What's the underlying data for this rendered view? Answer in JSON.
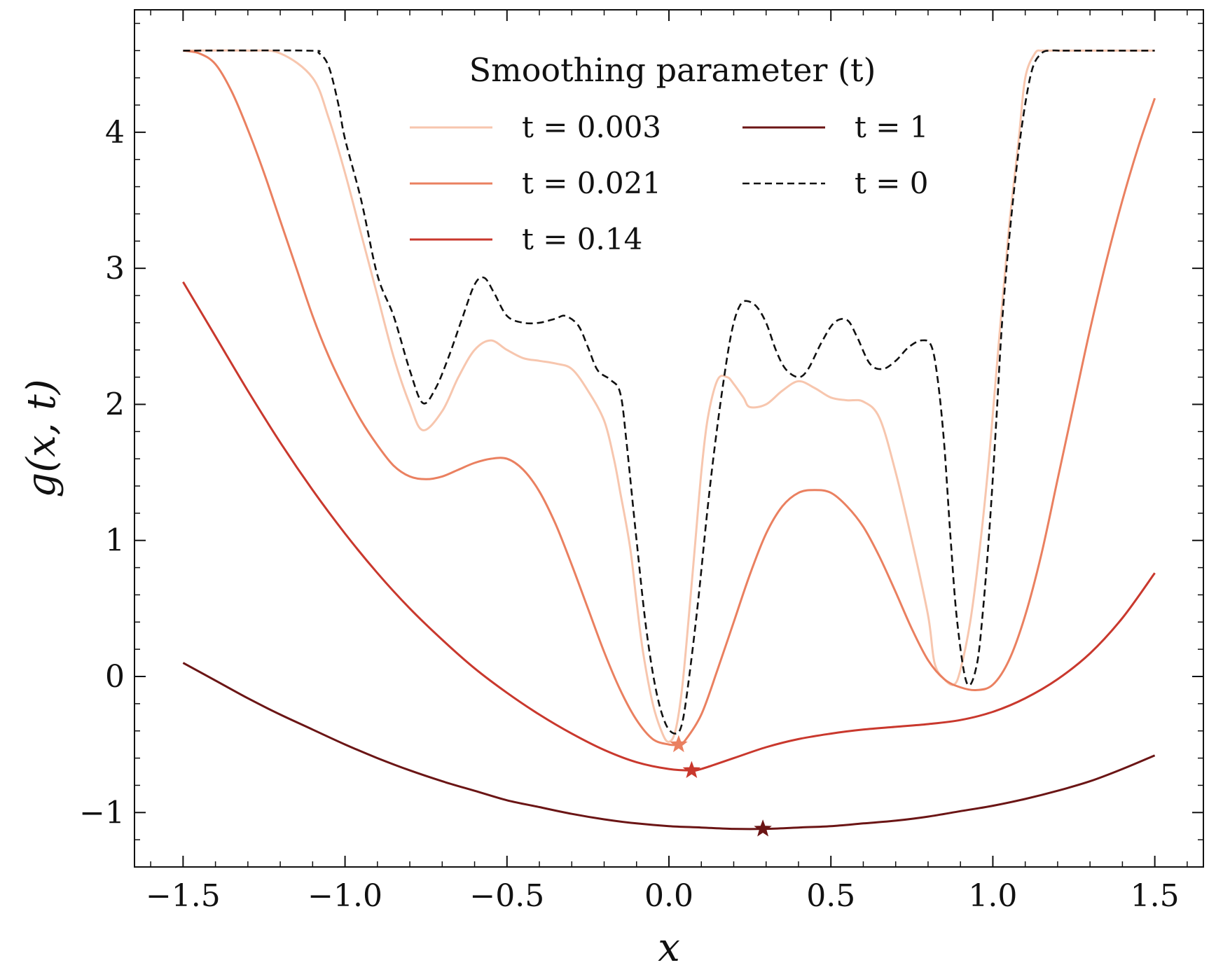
{
  "chart_data": {
    "type": "line",
    "title": "",
    "xlabel": "x",
    "ylabel": "g(x, t)",
    "xlim": [
      -1.65,
      1.65
    ],
    "ylim": [
      -1.4,
      4.9
    ],
    "x_ticks": [
      -1.5,
      -1.0,
      -0.5,
      0.0,
      0.5,
      1.0,
      1.5
    ],
    "x_tick_labels": [
      "−1.5",
      "−1.0",
      "−0.5",
      "0.0",
      "0.5",
      "1.0",
      "1.5"
    ],
    "y_ticks": [
      -1,
      0,
      1,
      2,
      3,
      4
    ],
    "y_tick_labels": [
      "−1",
      "0",
      "1",
      "2",
      "3",
      "4"
    ],
    "grid": false,
    "legend": {
      "title": "Smoothing parameter (t)",
      "placement": "top-center",
      "columns": 2
    },
    "series": [
      {
        "name": "t = 0.003",
        "color": "#f7c6ae",
        "style": "solid",
        "x": [
          -1.5,
          -1.3,
          -1.2,
          -1.1,
          -1.05,
          -1.0,
          -0.95,
          -0.9,
          -0.85,
          -0.8,
          -0.76,
          -0.7,
          -0.65,
          -0.6,
          -0.55,
          -0.5,
          -0.45,
          -0.4,
          -0.35,
          -0.3,
          -0.25,
          -0.2,
          -0.17,
          -0.15,
          -0.12,
          -0.1,
          -0.08,
          -0.05,
          -0.02,
          0.0,
          0.02,
          0.04,
          0.06,
          0.08,
          0.1,
          0.12,
          0.15,
          0.18,
          0.2,
          0.23,
          0.25,
          0.3,
          0.35,
          0.4,
          0.45,
          0.5,
          0.55,
          0.6,
          0.65,
          0.7,
          0.75,
          0.8,
          0.82,
          0.85,
          0.88,
          0.9,
          0.93,
          0.96,
          0.99,
          1.02,
          1.05,
          1.08,
          1.1,
          1.13,
          1.15,
          1.18,
          1.2,
          1.25,
          1.3,
          1.4,
          1.5
        ],
        "y": [
          4.6,
          4.6,
          4.58,
          4.4,
          4.1,
          3.7,
          3.25,
          2.8,
          2.35,
          2.0,
          1.81,
          1.95,
          2.2,
          2.4,
          2.47,
          2.4,
          2.34,
          2.32,
          2.3,
          2.26,
          2.1,
          1.88,
          1.6,
          1.35,
          0.95,
          0.55,
          0.18,
          -0.2,
          -0.42,
          -0.48,
          -0.4,
          -0.1,
          0.4,
          0.95,
          1.5,
          1.9,
          2.18,
          2.2,
          2.15,
          2.05,
          1.98,
          2.0,
          2.1,
          2.17,
          2.12,
          2.05,
          2.03,
          2.02,
          1.9,
          1.5,
          1.0,
          0.45,
          0.1,
          -0.02,
          -0.06,
          0.05,
          0.4,
          0.95,
          1.65,
          2.5,
          3.3,
          3.95,
          4.4,
          4.58,
          4.6,
          4.6,
          4.6,
          4.6,
          4.6,
          4.6,
          4.6
        ]
      },
      {
        "name": "t = 0.021",
        "color": "#ea8060",
        "style": "solid",
        "x": [
          -1.5,
          -1.45,
          -1.4,
          -1.35,
          -1.3,
          -1.25,
          -1.2,
          -1.15,
          -1.1,
          -1.05,
          -1.0,
          -0.95,
          -0.9,
          -0.85,
          -0.8,
          -0.75,
          -0.7,
          -0.65,
          -0.6,
          -0.55,
          -0.5,
          -0.45,
          -0.4,
          -0.35,
          -0.3,
          -0.25,
          -0.2,
          -0.15,
          -0.1,
          -0.05,
          0.0,
          0.03,
          0.05,
          0.1,
          0.15,
          0.2,
          0.25,
          0.3,
          0.35,
          0.4,
          0.45,
          0.5,
          0.55,
          0.6,
          0.65,
          0.7,
          0.75,
          0.8,
          0.85,
          0.9,
          0.95,
          1.0,
          1.05,
          1.1,
          1.15,
          1.2,
          1.25,
          1.3,
          1.35,
          1.4,
          1.45,
          1.5
        ],
        "y": [
          4.6,
          4.58,
          4.5,
          4.3,
          4.02,
          3.7,
          3.35,
          3.0,
          2.65,
          2.35,
          2.1,
          1.88,
          1.7,
          1.55,
          1.47,
          1.45,
          1.47,
          1.52,
          1.57,
          1.6,
          1.6,
          1.52,
          1.36,
          1.12,
          0.82,
          0.5,
          0.18,
          -0.1,
          -0.32,
          -0.46,
          -0.5,
          -0.5,
          -0.47,
          -0.28,
          0.05,
          0.4,
          0.75,
          1.05,
          1.25,
          1.35,
          1.37,
          1.35,
          1.25,
          1.1,
          0.88,
          0.62,
          0.35,
          0.12,
          -0.02,
          -0.08,
          -0.1,
          -0.06,
          0.12,
          0.45,
          0.9,
          1.45,
          2.0,
          2.55,
          3.05,
          3.5,
          3.9,
          4.25
        ]
      },
      {
        "name": "t = 0.14",
        "color": "#c9382d",
        "style": "solid",
        "x": [
          -1.5,
          -1.4,
          -1.3,
          -1.2,
          -1.1,
          -1.0,
          -0.9,
          -0.8,
          -0.7,
          -0.6,
          -0.5,
          -0.4,
          -0.3,
          -0.2,
          -0.1,
          0.0,
          0.07,
          0.1,
          0.2,
          0.3,
          0.4,
          0.5,
          0.6,
          0.7,
          0.8,
          0.9,
          1.0,
          1.1,
          1.2,
          1.3,
          1.4,
          1.5
        ],
        "y": [
          2.9,
          2.5,
          2.1,
          1.72,
          1.37,
          1.05,
          0.76,
          0.5,
          0.27,
          0.06,
          -0.12,
          -0.28,
          -0.42,
          -0.54,
          -0.63,
          -0.68,
          -0.69,
          -0.68,
          -0.6,
          -0.52,
          -0.46,
          -0.42,
          -0.39,
          -0.37,
          -0.35,
          -0.32,
          -0.26,
          -0.16,
          -0.02,
          0.17,
          0.43,
          0.76
        ]
      },
      {
        "name": "t = 1",
        "color": "#6b1515",
        "style": "solid",
        "x": [
          -1.5,
          -1.4,
          -1.3,
          -1.2,
          -1.1,
          -1.0,
          -0.9,
          -0.8,
          -0.7,
          -0.6,
          -0.5,
          -0.4,
          -0.3,
          -0.2,
          -0.1,
          0.0,
          0.1,
          0.2,
          0.3,
          0.4,
          0.5,
          0.6,
          0.7,
          0.8,
          0.9,
          1.0,
          1.1,
          1.2,
          1.3,
          1.4,
          1.5
        ],
        "y": [
          0.1,
          -0.03,
          -0.16,
          -0.28,
          -0.39,
          -0.5,
          -0.6,
          -0.69,
          -0.77,
          -0.84,
          -0.91,
          -0.96,
          -1.01,
          -1.05,
          -1.08,
          -1.1,
          -1.11,
          -1.12,
          -1.12,
          -1.11,
          -1.1,
          -1.08,
          -1.06,
          -1.03,
          -0.99,
          -0.95,
          -0.9,
          -0.84,
          -0.77,
          -0.68,
          -0.58
        ]
      },
      {
        "name": "t = 0",
        "color": "#111111",
        "style": "dashed",
        "x": [
          -1.5,
          -1.12,
          -1.08,
          -1.05,
          -1.02,
          -1.0,
          -0.95,
          -0.9,
          -0.85,
          -0.8,
          -0.76,
          -0.72,
          -0.68,
          -0.64,
          -0.6,
          -0.57,
          -0.54,
          -0.5,
          -0.45,
          -0.4,
          -0.35,
          -0.32,
          -0.28,
          -0.25,
          -0.22,
          -0.18,
          -0.15,
          -0.13,
          -0.1,
          -0.07,
          -0.04,
          -0.01,
          0.02,
          0.04,
          0.06,
          0.09,
          0.12,
          0.15,
          0.18,
          0.2,
          0.22,
          0.24,
          0.27,
          0.3,
          0.33,
          0.36,
          0.4,
          0.43,
          0.47,
          0.51,
          0.55,
          0.58,
          0.62,
          0.66,
          0.7,
          0.74,
          0.78,
          0.81,
          0.83,
          0.85,
          0.87,
          0.89,
          0.92,
          0.95,
          0.97,
          0.99,
          1.01,
          1.03,
          1.06,
          1.09,
          1.12,
          1.15,
          1.18,
          1.21,
          1.24,
          1.5
        ],
        "y": [
          4.6,
          4.6,
          4.58,
          4.48,
          4.2,
          3.95,
          3.5,
          2.95,
          2.65,
          2.25,
          2.01,
          2.12,
          2.35,
          2.62,
          2.88,
          2.93,
          2.82,
          2.65,
          2.6,
          2.6,
          2.63,
          2.65,
          2.58,
          2.42,
          2.25,
          2.18,
          2.08,
          1.7,
          1.0,
          0.35,
          -0.1,
          -0.35,
          -0.42,
          -0.35,
          -0.05,
          0.55,
          1.25,
          1.85,
          2.35,
          2.6,
          2.73,
          2.76,
          2.72,
          2.6,
          2.4,
          2.26,
          2.2,
          2.26,
          2.45,
          2.6,
          2.62,
          2.5,
          2.3,
          2.26,
          2.32,
          2.42,
          2.47,
          2.43,
          2.18,
          1.7,
          1.0,
          0.4,
          -0.05,
          0.08,
          0.5,
          1.1,
          1.85,
          2.65,
          3.45,
          4.05,
          4.45,
          4.58,
          4.6,
          4.6,
          4.6,
          4.6
        ]
      }
    ],
    "markers": [
      {
        "series": "t = 0.021",
        "x": 0.03,
        "y": -0.5,
        "color": "#ea8060",
        "shape": "star"
      },
      {
        "series": "t = 0.14",
        "x": 0.07,
        "y": -0.69,
        "color": "#c9382d",
        "shape": "star"
      },
      {
        "series": "t = 1",
        "x": 0.29,
        "y": -1.12,
        "color": "#6b1515",
        "shape": "star"
      }
    ]
  }
}
